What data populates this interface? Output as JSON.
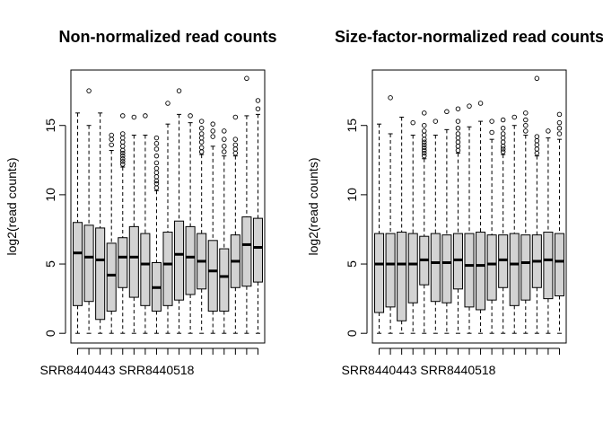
{
  "chart_data": [
    {
      "type": "boxplot",
      "title": "Non-normalized read counts",
      "ylabel": "log2(read counts)",
      "xlabel": "",
      "ylim": [
        -0.7,
        19.0
      ],
      "yticks": [
        0,
        5,
        10,
        15
      ],
      "category_labels_shown": [
        "SRR8440443",
        "SRR8440518"
      ],
      "boxes": [
        {
          "whisker_low": 0,
          "q1": 2.0,
          "median": 5.8,
          "q3": 8.0,
          "whisker_high": 15.9,
          "outliers": []
        },
        {
          "whisker_low": 0,
          "q1": 2.3,
          "median": 5.5,
          "q3": 7.8,
          "whisker_high": 15.0,
          "outliers": [
            17.5
          ]
        },
        {
          "whisker_low": 0,
          "q1": 1.0,
          "median": 5.3,
          "q3": 7.6,
          "whisker_high": 15.9,
          "outliers": []
        },
        {
          "whisker_low": 0,
          "q1": 1.6,
          "median": 4.2,
          "q3": 6.5,
          "whisker_high": 13.2,
          "outliers": [
            13.6,
            14.0,
            14.3
          ]
        },
        {
          "whisker_low": 0,
          "q1": 3.3,
          "median": 5.5,
          "q3": 6.9,
          "whisker_high": 12.0,
          "outliers": [
            12.2,
            12.4,
            12.6,
            12.8,
            13.0,
            13.2,
            13.5,
            13.8,
            14.1,
            14.4,
            15.7
          ]
        },
        {
          "whisker_low": 0,
          "q1": 2.6,
          "median": 5.5,
          "q3": 7.7,
          "whisker_high": 14.3,
          "outliers": [
            15.6
          ]
        },
        {
          "whisker_low": 0,
          "q1": 2.0,
          "median": 5.0,
          "q3": 7.2,
          "whisker_high": 14.3,
          "outliers": [
            15.7
          ]
        },
        {
          "whisker_low": 0,
          "q1": 1.6,
          "median": 3.3,
          "q3": 5.1,
          "whisker_high": 10.3,
          "outliers": [
            10.5,
            10.8,
            11.0,
            11.3,
            11.6,
            11.9,
            12.3,
            12.8,
            13.3,
            13.7,
            14.1
          ]
        },
        {
          "whisker_low": 0,
          "q1": 2.0,
          "median": 5.0,
          "q3": 7.3,
          "whisker_high": 15.1,
          "outliers": [
            16.6
          ]
        },
        {
          "whisker_low": 0,
          "q1": 2.4,
          "median": 5.7,
          "q3": 8.1,
          "whisker_high": 15.8,
          "outliers": [
            17.5
          ]
        },
        {
          "whisker_low": 0,
          "q1": 2.8,
          "median": 5.5,
          "q3": 7.7,
          "whisker_high": 15.2,
          "outliers": [
            15.7
          ]
        },
        {
          "whisker_low": 0,
          "q1": 3.2,
          "median": 5.2,
          "q3": 7.2,
          "whisker_high": 12.9,
          "outliers": [
            13.1,
            13.4,
            13.8,
            14.1,
            14.4,
            14.8,
            15.3
          ]
        },
        {
          "whisker_low": 0,
          "q1": 1.6,
          "median": 4.5,
          "q3": 6.7,
          "whisker_high": 13.5,
          "outliers": [
            14.2,
            14.6,
            15.1
          ]
        },
        {
          "whisker_low": 0,
          "q1": 1.6,
          "median": 4.1,
          "q3": 6.1,
          "whisker_high": 12.8,
          "outliers": [
            13.1,
            13.5,
            14.0,
            14.6
          ]
        },
        {
          "whisker_low": 0,
          "q1": 3.3,
          "median": 5.2,
          "q3": 7.1,
          "whisker_high": 12.8,
          "outliers": [
            13.0,
            13.3,
            13.6,
            14.0,
            15.6
          ]
        },
        {
          "whisker_low": 0,
          "q1": 3.4,
          "median": 6.4,
          "q3": 8.4,
          "whisker_high": 15.7,
          "outliers": [
            18.4
          ]
        },
        {
          "whisker_low": 0,
          "q1": 3.7,
          "median": 6.2,
          "q3": 8.3,
          "whisker_high": 15.8,
          "outliers": [
            16.2,
            16.8
          ]
        }
      ]
    },
    {
      "type": "boxplot",
      "title": "Size-factor-normalized read counts",
      "ylabel": "log2(read counts)",
      "xlabel": "",
      "ylim": [
        -0.7,
        19.0
      ],
      "yticks": [
        0,
        5,
        10,
        15
      ],
      "category_labels_shown": [
        "SRR8440443",
        "SRR8440518"
      ],
      "boxes": [
        {
          "whisker_low": 0,
          "q1": 1.5,
          "median": 5.0,
          "q3": 7.2,
          "whisker_high": 15.1,
          "outliers": []
        },
        {
          "whisker_low": 0,
          "q1": 1.9,
          "median": 5.0,
          "q3": 7.2,
          "whisker_high": 14.4,
          "outliers": [
            17.0
          ]
        },
        {
          "whisker_low": 0,
          "q1": 0.9,
          "median": 5.0,
          "q3": 7.3,
          "whisker_high": 15.6,
          "outliers": []
        },
        {
          "whisker_low": 0,
          "q1": 2.2,
          "median": 5.0,
          "q3": 7.2,
          "whisker_high": 14.3,
          "outliers": [
            15.2
          ]
        },
        {
          "whisker_low": 0,
          "q1": 3.5,
          "median": 5.3,
          "q3": 7.0,
          "whisker_high": 12.6,
          "outliers": [
            12.8,
            13.0,
            13.2,
            13.4,
            13.6,
            13.8,
            14.0,
            14.3,
            14.6,
            15.0,
            15.9
          ]
        },
        {
          "whisker_low": 0,
          "q1": 2.3,
          "median": 5.1,
          "q3": 7.2,
          "whisker_high": 14.3,
          "outliers": [
            15.3
          ]
        },
        {
          "whisker_low": 0,
          "q1": 2.2,
          "median": 5.1,
          "q3": 7.1,
          "whisker_high": 14.7,
          "outliers": [
            16.0
          ]
        },
        {
          "whisker_low": 0,
          "q1": 3.2,
          "median": 5.3,
          "q3": 7.2,
          "whisker_high": 13.0,
          "outliers": [
            13.2,
            13.5,
            13.8,
            14.1,
            14.4,
            14.8,
            15.3,
            16.2
          ]
        },
        {
          "whisker_low": 0,
          "q1": 1.9,
          "median": 4.9,
          "q3": 7.2,
          "whisker_high": 14.9,
          "outliers": [
            16.4
          ]
        },
        {
          "whisker_low": 0,
          "q1": 1.7,
          "median": 4.9,
          "q3": 7.3,
          "whisker_high": 15.3,
          "outliers": [
            16.6
          ]
        },
        {
          "whisker_low": 0,
          "q1": 2.4,
          "median": 5.0,
          "q3": 7.1,
          "whisker_high": 14.0,
          "outliers": [
            14.5,
            15.3
          ]
        },
        {
          "whisker_low": 0,
          "q1": 3.3,
          "median": 5.3,
          "q3": 7.1,
          "whisker_high": 12.9,
          "outliers": [
            13.1,
            13.3,
            13.5,
            13.8,
            14.1,
            14.4,
            14.8,
            15.4
          ]
        },
        {
          "whisker_low": 0,
          "q1": 2.0,
          "median": 5.0,
          "q3": 7.2,
          "whisker_high": 15.0,
          "outliers": [
            15.6
          ]
        },
        {
          "whisker_low": 0,
          "q1": 2.4,
          "median": 5.1,
          "q3": 7.1,
          "whisker_high": 14.3,
          "outliers": [
            14.6,
            15.0,
            15.4,
            15.9
          ]
        },
        {
          "whisker_low": 0,
          "q1": 3.3,
          "median": 5.2,
          "q3": 7.1,
          "whisker_high": 12.8,
          "outliers": [
            13.0,
            13.3,
            13.6,
            13.9,
            14.2,
            18.4
          ]
        },
        {
          "whisker_low": 0,
          "q1": 2.5,
          "median": 5.3,
          "q3": 7.3,
          "whisker_high": 14.1,
          "outliers": [
            14.6
          ]
        },
        {
          "whisker_low": 0,
          "q1": 2.7,
          "median": 5.2,
          "q3": 7.2,
          "whisker_high": 14.0,
          "outliers": [
            14.4,
            14.8,
            15.2,
            15.8
          ]
        }
      ]
    }
  ]
}
